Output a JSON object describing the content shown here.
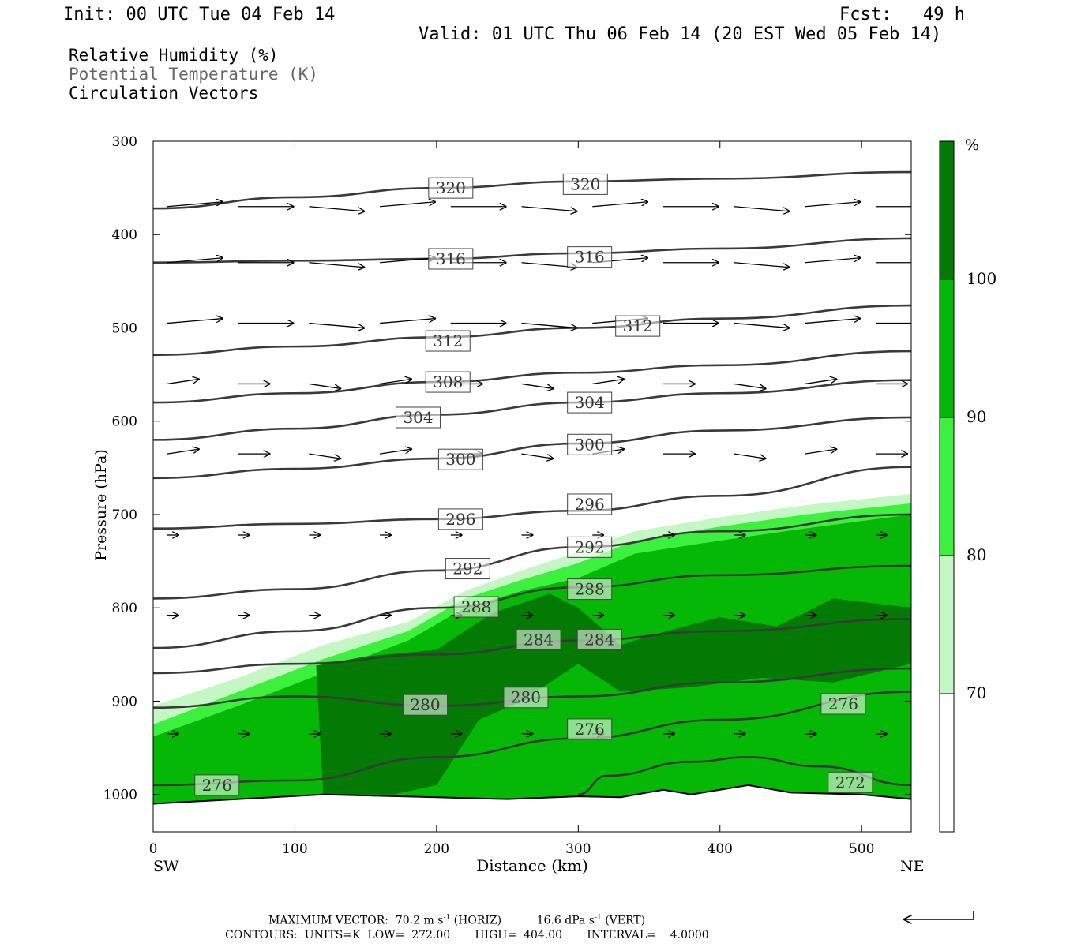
{
  "header": {
    "init": "Init: 00 UTC Tue 04 Feb 14",
    "fcst": "Fcst:   49 h",
    "valid": "Valid: 01 UTC Thu 06 Feb 14 (20 EST Wed 05 Feb 14)"
  },
  "legend": {
    "line1": "Relative Humidity (%)",
    "line2": "Potential Temperature (K)",
    "line3": "Circulation Vectors"
  },
  "footer": {
    "max_vector_label": "MAXIMUM VECTOR:",
    "max_horiz": "70.2 m s",
    "horiz_tag": "(HORIZ)",
    "max_vert": "16.6 dPa s",
    "vert_tag": "(VERT)",
    "contours": "CONTOURS:  UNITS=K  LOW=  272.00       HIGH=  404.00       INTERVAL=    4.0000"
  },
  "colors": {
    "rh_70_80": "#c4f7c4",
    "rh_80_90": "#3ef03e",
    "rh_90_100": "#06b806",
    "rh_100": "#037a03",
    "theta": "#3a3a3a"
  },
  "chart_data": {
    "type": "cross-section",
    "xlabel": "Distance (km)",
    "ylabel": "Pressure (hPa)",
    "x_left_label": "SW",
    "x_right_label": "NE",
    "xlim": [
      0,
      535
    ],
    "ylim": [
      300,
      1040
    ],
    "x_ticks": [
      0,
      100,
      200,
      300,
      400,
      500
    ],
    "y_ticks": [
      300,
      400,
      500,
      600,
      700,
      800,
      900,
      1000
    ],
    "colorbar": {
      "unit": "%",
      "levels": [
        70,
        80,
        90,
        100
      ],
      "colors": [
        "#ffffff",
        "#c4f7c4",
        "#3ef03e",
        "#06b806",
        "#037a03"
      ]
    },
    "rh_layers": [
      {
        "level": 70,
        "top": [
          [
            0,
            905
          ],
          [
            60,
            875
          ],
          [
            120,
            840
          ],
          [
            180,
            815
          ],
          [
            220,
            782
          ],
          [
            260,
            760
          ],
          [
            300,
            740
          ],
          [
            340,
            718
          ],
          [
            400,
            703
          ],
          [
            460,
            690
          ],
          [
            535,
            678
          ]
        ]
      },
      {
        "level": 80,
        "top": [
          [
            0,
            925
          ],
          [
            60,
            890
          ],
          [
            120,
            855
          ],
          [
            180,
            825
          ],
          [
            220,
            790
          ],
          [
            260,
            770
          ],
          [
            300,
            752
          ],
          [
            340,
            728
          ],
          [
            400,
            713
          ],
          [
            460,
            700
          ],
          [
            535,
            688
          ]
        ]
      },
      {
        "level": 90,
        "top": [
          [
            0,
            938
          ],
          [
            60,
            905
          ],
          [
            120,
            870
          ],
          [
            180,
            835
          ],
          [
            220,
            800
          ],
          [
            260,
            782
          ],
          [
            300,
            768
          ],
          [
            340,
            742
          ],
          [
            400,
            728
          ],
          [
            460,
            715
          ],
          [
            535,
            700
          ]
        ]
      },
      {
        "level": 100,
        "top": [
          [
            115,
            862
          ],
          [
            150,
            852
          ],
          [
            200,
            845
          ],
          [
            240,
            805
          ],
          [
            280,
            785
          ],
          [
            300,
            800
          ],
          [
            330,
            840
          ],
          [
            350,
            830
          ],
          [
            400,
            810
          ],
          [
            440,
            820
          ],
          [
            480,
            790
          ],
          [
            535,
            800
          ]
        ],
        "bottom": [
          [
            535,
            860
          ],
          [
            480,
            880
          ],
          [
            430,
            875
          ],
          [
            380,
            885
          ],
          [
            330,
            890
          ],
          [
            300,
            860
          ],
          [
            260,
            900
          ],
          [
            230,
            920
          ],
          [
            200,
            990
          ],
          [
            170,
            1000
          ],
          [
            120,
            1000
          ]
        ]
      }
    ],
    "theta_contours": [
      {
        "value": 320,
        "points": [
          [
            0,
            372
          ],
          [
            100,
            360
          ],
          [
            200,
            350
          ],
          [
            300,
            343
          ],
          [
            400,
            340
          ],
          [
            535,
            333
          ]
        ]
      },
      {
        "value": 316,
        "points": [
          [
            0,
            430
          ],
          [
            100,
            428
          ],
          [
            200,
            426
          ],
          [
            300,
            420
          ],
          [
            400,
            415
          ],
          [
            535,
            404
          ]
        ]
      },
      {
        "value": 312,
        "points": [
          [
            0,
            529
          ],
          [
            100,
            520
          ],
          [
            200,
            510
          ],
          [
            300,
            500
          ],
          [
            400,
            490
          ],
          [
            535,
            476
          ]
        ]
      },
      {
        "value": 308,
        "points": [
          [
            0,
            580
          ],
          [
            100,
            570
          ],
          [
            200,
            558
          ],
          [
            300,
            548
          ],
          [
            400,
            540
          ],
          [
            535,
            525
          ]
        ]
      },
      {
        "value": 304,
        "points": [
          [
            0,
            620
          ],
          [
            100,
            608
          ],
          [
            200,
            593
          ],
          [
            300,
            580
          ],
          [
            400,
            570
          ],
          [
            535,
            556
          ]
        ]
      },
      {
        "value": 300,
        "points": [
          [
            0,
            661
          ],
          [
            100,
            651
          ],
          [
            200,
            640
          ],
          [
            300,
            624
          ],
          [
            400,
            610
          ],
          [
            535,
            596
          ]
        ]
      },
      {
        "value": 296,
        "points": [
          [
            0,
            715
          ],
          [
            100,
            710
          ],
          [
            200,
            705
          ],
          [
            300,
            696
          ],
          [
            400,
            680
          ],
          [
            535,
            649
          ]
        ]
      },
      {
        "value": 292,
        "points": [
          [
            0,
            790
          ],
          [
            100,
            780
          ],
          [
            200,
            760
          ],
          [
            300,
            735
          ],
          [
            400,
            718
          ],
          [
            535,
            700
          ]
        ]
      },
      {
        "value": 288,
        "points": [
          [
            0,
            843
          ],
          [
            100,
            825
          ],
          [
            200,
            800
          ],
          [
            300,
            778
          ],
          [
            400,
            765
          ],
          [
            535,
            755
          ]
        ]
      },
      {
        "value": 284,
        "points": [
          [
            0,
            870
          ],
          [
            100,
            860
          ],
          [
            200,
            850
          ],
          [
            300,
            835
          ],
          [
            400,
            825
          ],
          [
            535,
            812
          ]
        ]
      },
      {
        "value": 280,
        "points": [
          [
            0,
            907
          ],
          [
            100,
            895
          ],
          [
            200,
            905
          ],
          [
            300,
            895
          ],
          [
            400,
            880
          ],
          [
            535,
            865
          ]
        ]
      },
      {
        "value": 276,
        "points": [
          [
            0,
            990
          ],
          [
            100,
            985
          ],
          [
            200,
            960
          ],
          [
            300,
            940
          ],
          [
            400,
            920
          ],
          [
            535,
            890
          ]
        ]
      },
      {
        "value": 272,
        "points": [
          [
            300,
            1000
          ],
          [
            320,
            980
          ],
          [
            380,
            965
          ],
          [
            420,
            960
          ],
          [
            470,
            970
          ],
          [
            535,
            990
          ]
        ]
      }
    ],
    "contour_labels": [
      {
        "value": "320",
        "x": 210,
        "p": 350
      },
      {
        "value": "320",
        "x": 305,
        "p": 346
      },
      {
        "value": "316",
        "x": 210,
        "p": 426
      },
      {
        "value": "316",
        "x": 308,
        "p": 424
      },
      {
        "value": "312",
        "x": 208,
        "p": 514
      },
      {
        "value": "312",
        "x": 342,
        "p": 498
      },
      {
        "value": "308",
        "x": 208,
        "p": 558
      },
      {
        "value": "304",
        "x": 187,
        "p": 596
      },
      {
        "value": "304",
        "x": 308,
        "p": 580
      },
      {
        "value": "300",
        "x": 217,
        "p": 641
      },
      {
        "value": "300",
        "x": 308,
        "p": 625
      },
      {
        "value": "296",
        "x": 217,
        "p": 705
      },
      {
        "value": "296",
        "x": 308,
        "p": 689
      },
      {
        "value": "292",
        "x": 222,
        "p": 758
      },
      {
        "value": "292",
        "x": 308,
        "p": 735
      },
      {
        "value": "288",
        "x": 228,
        "p": 799
      },
      {
        "value": "288",
        "x": 308,
        "p": 780
      },
      {
        "value": "284",
        "x": 272,
        "p": 834
      },
      {
        "value": "284",
        "x": 315,
        "p": 834
      },
      {
        "value": "280",
        "x": 192,
        "p": 904
      },
      {
        "value": "280",
        "x": 263,
        "p": 896
      },
      {
        "value": "276",
        "x": 308,
        "p": 930
      },
      {
        "value": "276",
        "x": 487,
        "p": 903
      },
      {
        "value": "276",
        "x": 45,
        "p": 990
      },
      {
        "value": "272",
        "x": 492,
        "p": 987
      }
    ],
    "terrain_surface": [
      [
        0,
        1010
      ],
      [
        60,
        1005
      ],
      [
        120,
        1000
      ],
      [
        200,
        1003
      ],
      [
        250,
        1005
      ],
      [
        300,
        1002
      ],
      [
        330,
        1003
      ],
      [
        360,
        995
      ],
      [
        380,
        1000
      ],
      [
        400,
        995
      ],
      [
        420,
        990
      ],
      [
        450,
        998
      ],
      [
        500,
        1000
      ],
      [
        535,
        1005
      ]
    ],
    "vector_rows_hPa": [
      370,
      430,
      495,
      560,
      635,
      722,
      808,
      935
    ],
    "vector_columns_km": [
      10,
      60,
      110,
      160,
      210,
      260,
      310,
      360,
      410,
      460,
      510
    ]
  }
}
